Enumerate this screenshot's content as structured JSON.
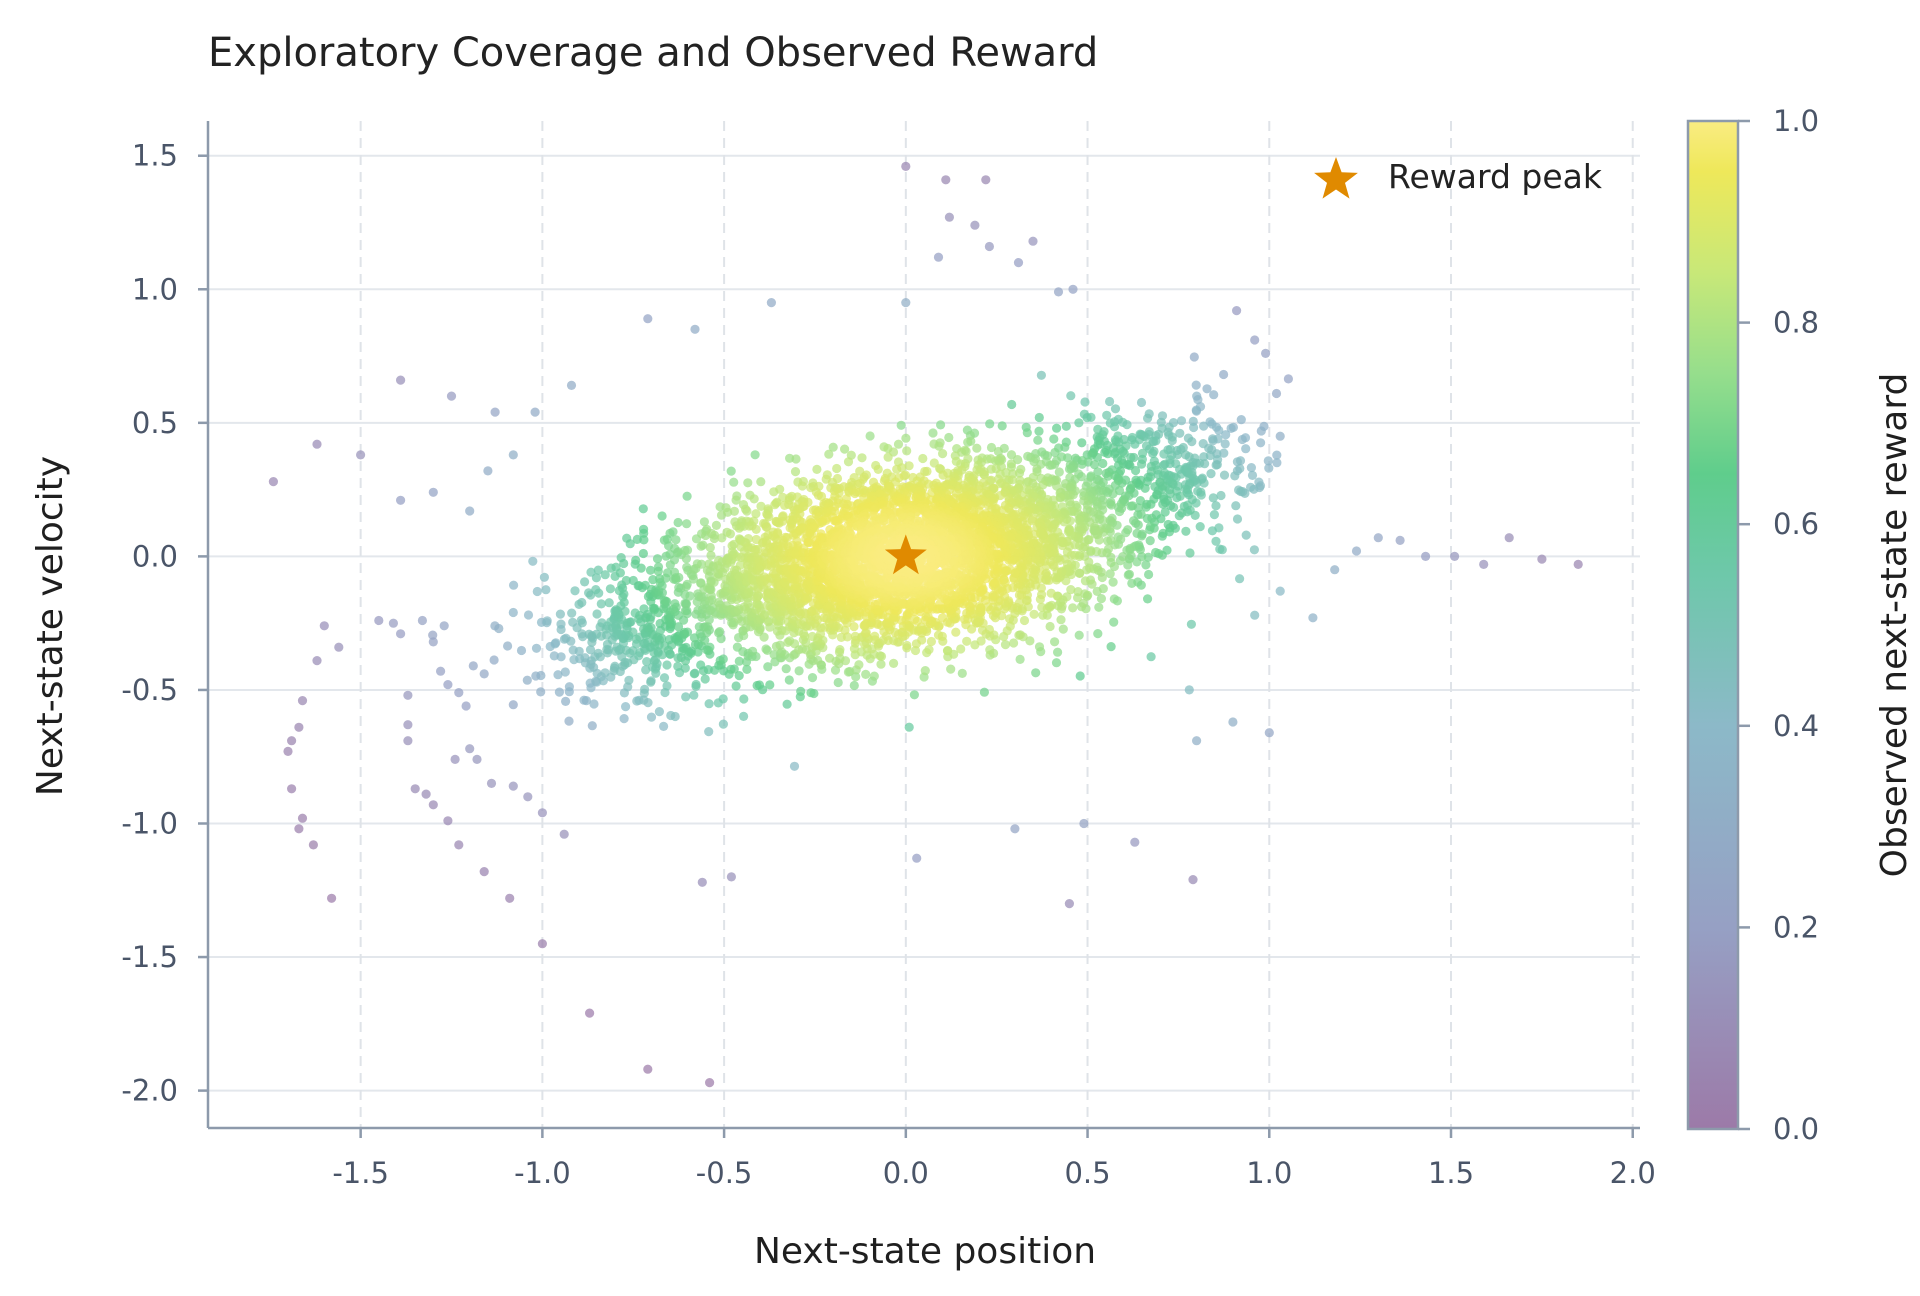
{
  "chart_data": {
    "type": "scatter",
    "title": "Exploratory Coverage and Observed Reward",
    "xlabel": "Next-state position",
    "ylabel": "Next-state velocity",
    "xlim": [
      -1.92,
      2.02
    ],
    "ylim": [
      -2.14,
      1.63
    ],
    "x_ticks": [
      -1.5,
      -1.0,
      -0.5,
      0.0,
      0.5,
      1.0,
      1.5,
      2.0
    ],
    "x_tick_labels": [
      "-1.5",
      "-1.0",
      "-0.5",
      "0.0",
      "0.5",
      "1.0",
      "1.5",
      "2.0"
    ],
    "y_ticks": [
      1.5,
      1.0,
      0.5,
      0.0,
      -0.5,
      -1.0,
      -1.5,
      -2.0
    ],
    "y_tick_labels": [
      "1.5",
      "1.0",
      "0.5",
      "0.0",
      "-0.5",
      "-1.0",
      "-1.5",
      "-2.0"
    ],
    "grid": true,
    "colorbar": {
      "label": "Observed next-state reward",
      "range": [
        0.0,
        1.0
      ],
      "ticks": [
        0.0,
        0.2,
        0.4,
        0.6,
        0.8,
        1.0
      ],
      "tick_labels": [
        "0.0",
        "0.2",
        "0.4",
        "0.6",
        "0.8",
        "1.0"
      ],
      "colormap": "viridis"
    },
    "legend": {
      "placement": "top-right",
      "entries": [
        "Reward peak"
      ]
    },
    "reward_peak": {
      "x": 0.0,
      "y": 0.0,
      "color": "#e08a00",
      "marker": "star"
    },
    "dense_cloud": {
      "count": 4200,
      "center": [
        0.0,
        0.0
      ],
      "std_along_major_axis": 0.33,
      "std_along_minor_axis": 0.16,
      "tilt_degrees": 16,
      "notable_clusters": [
        {
          "x": -0.75,
          "y": -0.3
        },
        {
          "x": 0.7,
          "y": 0.35
        }
      ]
    },
    "outliers": [
      {
        "x": -1.74,
        "y": 0.28
      },
      {
        "x": -1.62,
        "y": 0.42
      },
      {
        "x": -1.5,
        "y": 0.38
      },
      {
        "x": -1.39,
        "y": 0.66
      },
      {
        "x": -1.25,
        "y": 0.6
      },
      {
        "x": -1.13,
        "y": 0.54
      },
      {
        "x": -1.02,
        "y": 0.54
      },
      {
        "x": -0.92,
        "y": 0.64
      },
      {
        "x": -1.39,
        "y": 0.21
      },
      {
        "x": -1.3,
        "y": 0.24
      },
      {
        "x": -1.2,
        "y": 0.17
      },
      {
        "x": -1.15,
        "y": 0.32
      },
      {
        "x": -1.08,
        "y": 0.38
      },
      {
        "x": -0.71,
        "y": 0.89
      },
      {
        "x": -0.58,
        "y": 0.85
      },
      {
        "x": -0.37,
        "y": 0.95
      },
      {
        "x": 0.0,
        "y": 0.95
      },
      {
        "x": 0.0,
        "y": 1.46
      },
      {
        "x": 0.11,
        "y": 1.41
      },
      {
        "x": 0.22,
        "y": 1.41
      },
      {
        "x": 0.12,
        "y": 1.27
      },
      {
        "x": 0.19,
        "y": 1.24
      },
      {
        "x": 0.35,
        "y": 1.18
      },
      {
        "x": 0.09,
        "y": 1.12
      },
      {
        "x": 0.23,
        "y": 1.16
      },
      {
        "x": 0.31,
        "y": 1.1
      },
      {
        "x": 0.46,
        "y": 1.0
      },
      {
        "x": 0.42,
        "y": 0.99
      },
      {
        "x": 0.91,
        "y": 0.92
      },
      {
        "x": 0.96,
        "y": 0.81
      },
      {
        "x": 0.99,
        "y": 0.76
      },
      {
        "x": 1.02,
        "y": 0.61
      },
      {
        "x": 1.03,
        "y": 0.45
      },
      {
        "x": -1.6,
        "y": -0.26
      },
      {
        "x": -1.56,
        "y": -0.34
      },
      {
        "x": -1.62,
        "y": -0.39
      },
      {
        "x": -1.66,
        "y": -0.54
      },
      {
        "x": -1.67,
        "y": -0.64
      },
      {
        "x": -1.69,
        "y": -0.69
      },
      {
        "x": -1.7,
        "y": -0.73
      },
      {
        "x": -1.69,
        "y": -0.87
      },
      {
        "x": -1.66,
        "y": -0.98
      },
      {
        "x": -1.67,
        "y": -1.02
      },
      {
        "x": -1.63,
        "y": -1.08
      },
      {
        "x": -1.58,
        "y": -1.28
      },
      {
        "x": -1.37,
        "y": -0.52
      },
      {
        "x": -1.37,
        "y": -0.63
      },
      {
        "x": -1.37,
        "y": -0.69
      },
      {
        "x": -1.35,
        "y": -0.87
      },
      {
        "x": -1.32,
        "y": -0.89
      },
      {
        "x": -1.3,
        "y": -0.93
      },
      {
        "x": -1.26,
        "y": -0.99
      },
      {
        "x": -1.23,
        "y": -1.08
      },
      {
        "x": -1.16,
        "y": -1.18
      },
      {
        "x": -1.09,
        "y": -1.28
      },
      {
        "x": -1.0,
        "y": -1.45
      },
      {
        "x": -0.87,
        "y": -1.71
      },
      {
        "x": -0.71,
        "y": -1.92
      },
      {
        "x": -0.54,
        "y": -1.97
      },
      {
        "x": -1.24,
        "y": -0.76
      },
      {
        "x": -1.2,
        "y": -0.72
      },
      {
        "x": -1.18,
        "y": -0.76
      },
      {
        "x": -1.14,
        "y": -0.85
      },
      {
        "x": -1.08,
        "y": -0.86
      },
      {
        "x": -1.04,
        "y": -0.9
      },
      {
        "x": -1.0,
        "y": -0.96
      },
      {
        "x": -0.94,
        "y": -1.04
      },
      {
        "x": -0.56,
        "y": -1.22
      },
      {
        "x": -0.48,
        "y": -1.2
      },
      {
        "x": 0.03,
        "y": -1.13
      },
      {
        "x": 0.45,
        "y": -1.3
      },
      {
        "x": 0.79,
        "y": -1.21
      },
      {
        "x": 0.63,
        "y": -1.07
      },
      {
        "x": 0.49,
        "y": -1.0
      },
      {
        "x": 0.3,
        "y": -1.02
      },
      {
        "x": 0.78,
        "y": -0.5
      },
      {
        "x": 0.8,
        "y": -0.69
      },
      {
        "x": 0.9,
        "y": -0.62
      },
      {
        "x": 1.0,
        "y": -0.66
      },
      {
        "x": 0.96,
        "y": -0.22
      },
      {
        "x": 1.03,
        "y": -0.13
      },
      {
        "x": 1.12,
        "y": -0.23
      },
      {
        "x": 1.18,
        "y": -0.05
      },
      {
        "x": 1.24,
        "y": 0.02
      },
      {
        "x": 1.3,
        "y": 0.07
      },
      {
        "x": 1.36,
        "y": 0.06
      },
      {
        "x": 1.43,
        "y": 0.0
      },
      {
        "x": 1.51,
        "y": 0.0
      },
      {
        "x": 1.59,
        "y": -0.03
      },
      {
        "x": 1.66,
        "y": 0.07
      },
      {
        "x": 1.75,
        "y": -0.01
      },
      {
        "x": 1.85,
        "y": -0.03
      },
      {
        "x": -1.45,
        "y": -0.24
      },
      {
        "x": -1.41,
        "y": -0.25
      },
      {
        "x": -1.39,
        "y": -0.29
      },
      {
        "x": -1.33,
        "y": -0.24
      },
      {
        "x": -1.3,
        "y": -0.32
      },
      {
        "x": -1.27,
        "y": -0.26
      },
      {
        "x": -1.28,
        "y": -0.43
      },
      {
        "x": -1.26,
        "y": -0.48
      },
      {
        "x": -1.23,
        "y": -0.51
      },
      {
        "x": -1.21,
        "y": -0.56
      },
      {
        "x": -1.19,
        "y": -0.41
      },
      {
        "x": -1.16,
        "y": -0.44
      },
      {
        "x": -1.12,
        "y": -0.27
      },
      {
        "x": -1.08,
        "y": -0.21
      }
    ]
  }
}
